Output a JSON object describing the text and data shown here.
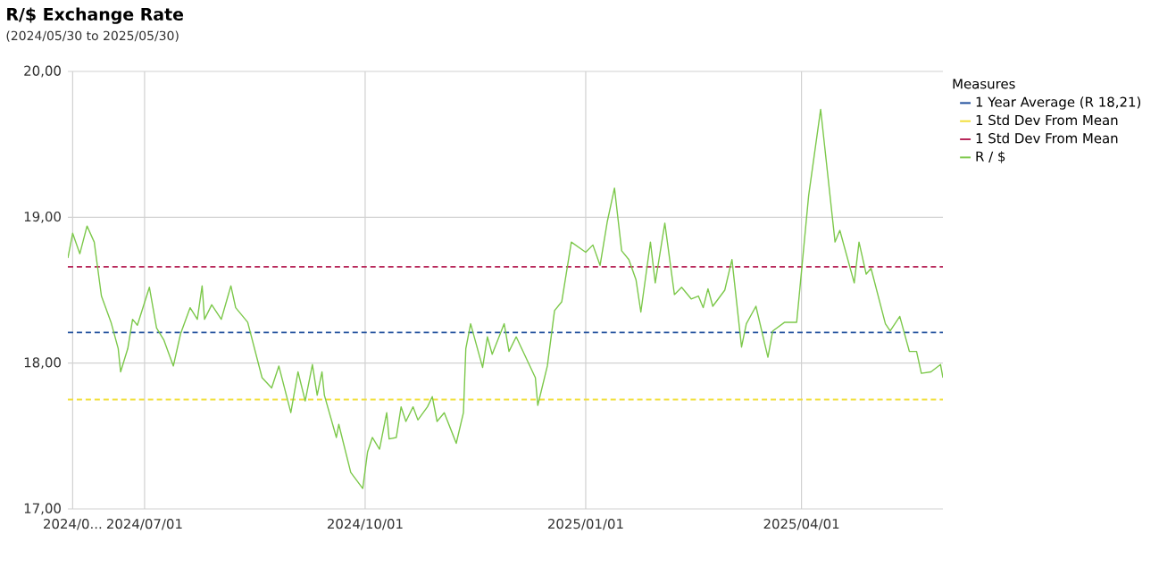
{
  "chart_data": {
    "type": "line",
    "title": "R/$ Exchange Rate",
    "subtitle": "(2024/05/30 to 2025/05/30)",
    "legend_title": "Measures",
    "legend": "right",
    "grid": true,
    "line_style": "solid",
    "marker": "none",
    "xlim": [
      "2024-05-30",
      "2025-05-30"
    ],
    "xticks": [
      {
        "value": "2024-06-01",
        "label": "2024/0..."
      },
      {
        "value": "2024-07-01",
        "label": "2024/07/01"
      },
      {
        "value": "2024-10-01",
        "label": "2024/10/01"
      },
      {
        "value": "2025-01-01",
        "label": "2025/01/01"
      },
      {
        "value": "2025-04-01",
        "label": "2025/04/01"
      }
    ],
    "ylim": [
      17,
      20
    ],
    "yticks": [
      {
        "value": 17,
        "label": "17,00"
      },
      {
        "value": 18,
        "label": "18,00"
      },
      {
        "value": 19,
        "label": "19,00"
      },
      {
        "value": 20,
        "label": "20,00"
      }
    ],
    "ref_lines": [
      {
        "axis": "y",
        "value": 18.21,
        "label": "1 Year Average (R 18,21)",
        "color": "#1f4e9c",
        "line_style": "dashed"
      },
      {
        "axis": "y",
        "value": 17.75,
        "label": "1 Std Dev From Mean",
        "color": "#f2df3a",
        "line_style": "dashed"
      },
      {
        "axis": "y",
        "value": 18.66,
        "label": "1 Std Dev From Mean",
        "color": "#b8285a",
        "line_style": "dashed"
      }
    ],
    "series": [
      {
        "name": "R / $",
        "color": "#7cc84a",
        "x": [
          "2024-05-30",
          "2024-06-01",
          "2024-06-04",
          "2024-06-07",
          "2024-06-10",
          "2024-06-13",
          "2024-06-17",
          "2024-06-20",
          "2024-06-21",
          "2024-06-24",
          "2024-06-26",
          "2024-06-28",
          "2024-07-03",
          "2024-07-06",
          "2024-07-09",
          "2024-07-13",
          "2024-07-16",
          "2024-07-20",
          "2024-07-23",
          "2024-07-25",
          "2024-07-26",
          "2024-07-29",
          "2024-08-02",
          "2024-08-06",
          "2024-08-08",
          "2024-08-13",
          "2024-08-19",
          "2024-08-23",
          "2024-08-26",
          "2024-08-31",
          "2024-09-03",
          "2024-09-06",
          "2024-09-09",
          "2024-09-11",
          "2024-09-13",
          "2024-09-14",
          "2024-09-19",
          "2024-09-20",
          "2024-09-25",
          "2024-09-30",
          "2024-10-02",
          "2024-10-04",
          "2024-10-07",
          "2024-10-10",
          "2024-10-11",
          "2024-10-14",
          "2024-10-16",
          "2024-10-18",
          "2024-10-21",
          "2024-10-23",
          "2024-10-27",
          "2024-10-29",
          "2024-10-31",
          "2024-11-03",
          "2024-11-08",
          "2024-11-11",
          "2024-11-12",
          "2024-11-14",
          "2024-11-19",
          "2024-11-21",
          "2024-11-23",
          "2024-11-28",
          "2024-11-30",
          "2024-12-03",
          "2024-12-11",
          "2024-12-12",
          "2024-12-16",
          "2024-12-19",
          "2024-12-22",
          "2024-12-26",
          "2025-01-01",
          "2025-01-04",
          "2025-01-07",
          "2025-01-10",
          "2025-01-13",
          "2025-01-16",
          "2025-01-19",
          "2025-01-22",
          "2025-01-24",
          "2025-01-28",
          "2025-01-30",
          "2025-02-03",
          "2025-02-07",
          "2025-02-10",
          "2025-02-14",
          "2025-02-17",
          "2025-02-19",
          "2025-02-21",
          "2025-02-23",
          "2025-02-28",
          "2025-03-03",
          "2025-03-07",
          "2025-03-09",
          "2025-03-13",
          "2025-03-18",
          "2025-03-20",
          "2025-03-25",
          "2025-03-30",
          "2025-04-04",
          "2025-04-09",
          "2025-04-15",
          "2025-04-17",
          "2025-04-23",
          "2025-04-25",
          "2025-04-28",
          "2025-04-30",
          "2025-05-06",
          "2025-05-08",
          "2025-05-12",
          "2025-05-16",
          "2025-05-19",
          "2025-05-21",
          "2025-05-25",
          "2025-05-29",
          "2025-05-30"
        ],
        "values": [
          18.72,
          18.89,
          18.75,
          18.94,
          18.83,
          18.46,
          18.28,
          18.1,
          17.94,
          18.1,
          18.3,
          18.26,
          18.52,
          18.24,
          18.16,
          17.98,
          18.2,
          18.38,
          18.3,
          18.53,
          18.3,
          18.4,
          18.3,
          18.53,
          18.38,
          18.28,
          17.9,
          17.83,
          17.98,
          17.66,
          17.94,
          17.74,
          17.99,
          17.78,
          17.94,
          17.78,
          17.49,
          17.58,
          17.25,
          17.14,
          17.39,
          17.49,
          17.41,
          17.66,
          17.48,
          17.49,
          17.7,
          17.6,
          17.7,
          17.61,
          17.7,
          17.77,
          17.6,
          17.66,
          17.45,
          17.66,
          18.1,
          18.27,
          17.97,
          18.18,
          18.06,
          18.27,
          18.08,
          18.18,
          17.9,
          17.71,
          17.98,
          18.36,
          18.42,
          18.83,
          18.76,
          18.81,
          18.67,
          18.97,
          19.2,
          18.77,
          18.71,
          18.57,
          18.35,
          18.83,
          18.55,
          18.96,
          18.47,
          18.52,
          18.44,
          18.46,
          18.38,
          18.51,
          18.39,
          18.5,
          18.71,
          18.11,
          18.27,
          18.39,
          18.04,
          18.22,
          18.28,
          18.28,
          19.15,
          19.74,
          18.83,
          18.91,
          18.55,
          18.83,
          18.61,
          18.65,
          18.27,
          18.22,
          18.32,
          18.08,
          18.08,
          17.93,
          17.94,
          17.99,
          17.9
        ]
      }
    ]
  }
}
